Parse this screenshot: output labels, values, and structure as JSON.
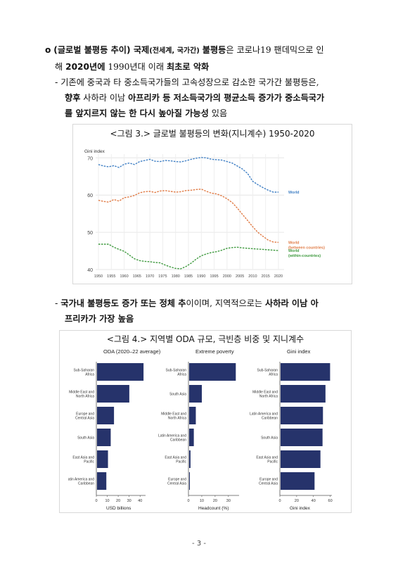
{
  "bullet1": {
    "marker": "o",
    "head_bold": "(글로벌 불평등 추이) 국제",
    "head_small": "(전세계, 국가간)",
    "head_bold2": "불평등",
    "text1": "은 코로나19 팬데믹으로 인",
    "line2_pre": "해 ",
    "year_bold": "2020년에",
    "line2_mid": " 1990년대 이래 ",
    "worst_bold": "최초로 악화"
  },
  "sub1": {
    "dash": "-",
    "line1": "기존에 중국과 타 중소득국가들의 고속성장으로 감소한 국가간 불평등은,",
    "l2_bold1": "향후",
    "l2_text": " 사하라 이남 ",
    "l2_bold2": "아프리카 등 저소득국가의 평균소득 증가가 중소득국가",
    "l3_bold": "를 앞지르지 않는 한 다시 높아질 가능성",
    "l3_text": " 있음"
  },
  "figure3": {
    "title": "<그림 3.> 글로벌 불평등의 변화(지니계수) 1950-2020",
    "chart_data": {
      "type": "line",
      "ylabel": "Gini index",
      "ylim": [
        40,
        71
      ],
      "yticks": [
        40,
        50,
        60,
        70
      ],
      "xticks": [
        1950,
        1955,
        1960,
        1965,
        1970,
        1975,
        1980,
        1985,
        1990,
        1995,
        2000,
        2005,
        2010,
        2015,
        2020
      ],
      "grid": true,
      "series": [
        {
          "name": "World",
          "color": "#3f7fc4",
          "x": [
            1950,
            1952,
            1954,
            1956,
            1958,
            1960,
            1962,
            1964,
            1966,
            1968,
            1970,
            1972,
            1974,
            1976,
            1978,
            1980,
            1982,
            1984,
            1986,
            1988,
            1990,
            1992,
            1994,
            1996,
            1998,
            2000,
            2002,
            2004,
            2006,
            2008,
            2010,
            2012,
            2014,
            2016,
            2018,
            2020
          ],
          "values": [
            68.2,
            67.8,
            67.6,
            67.9,
            67.4,
            68.3,
            68.6,
            68.2,
            69.0,
            69.3,
            69.6,
            69.1,
            69.0,
            69.3,
            69.2,
            69.0,
            68.9,
            69.2,
            69.6,
            69.9,
            70.1,
            70.0,
            69.6,
            69.5,
            69.4,
            69.0,
            68.6,
            67.8,
            67.0,
            65.8,
            63.7,
            62.8,
            62.0,
            61.3,
            60.8,
            60.8
          ]
        },
        {
          "name": "World",
          "name2": "(between countries)",
          "color": "#e07a44",
          "x": [
            1950,
            1952,
            1954,
            1956,
            1958,
            1960,
            1962,
            1964,
            1966,
            1968,
            1970,
            1972,
            1974,
            1976,
            1978,
            1980,
            1982,
            1984,
            1986,
            1988,
            1990,
            1992,
            1994,
            1996,
            1998,
            2000,
            2002,
            2004,
            2006,
            2008,
            2010,
            2012,
            2014,
            2016,
            2018,
            2020
          ],
          "values": [
            58.6,
            58.3,
            58.1,
            58.8,
            58.4,
            59.3,
            59.5,
            59.9,
            60.6,
            60.9,
            61.0,
            60.7,
            61.1,
            61.2,
            61.0,
            60.8,
            60.9,
            61.2,
            61.3,
            61.5,
            61.6,
            61.0,
            60.5,
            60.3,
            59.8,
            59.0,
            58.0,
            56.5,
            54.8,
            53.2,
            51.5,
            50.0,
            48.9,
            47.9,
            47.4,
            47.3
          ]
        },
        {
          "name": "World",
          "name2": "(within-countries)",
          "color": "#3f9a3f",
          "x": [
            1950,
            1952,
            1954,
            1956,
            1958,
            1960,
            1962,
            1964,
            1966,
            1968,
            1970,
            1972,
            1974,
            1976,
            1978,
            1980,
            1982,
            1984,
            1986,
            1988,
            1990,
            1992,
            1994,
            1996,
            1998,
            2000,
            2002,
            2004,
            2006,
            2008,
            2010,
            2012,
            2014,
            2016,
            2018,
            2020
          ],
          "values": [
            46.8,
            46.8,
            46.8,
            46.0,
            45.4,
            44.9,
            43.9,
            42.9,
            42.4,
            42.2,
            42.1,
            41.9,
            41.8,
            41.2,
            40.7,
            40.3,
            40.2,
            40.8,
            41.7,
            42.8,
            43.7,
            44.2,
            44.6,
            44.8,
            45.2,
            45.7,
            45.9,
            46.0,
            45.8,
            45.7,
            45.6,
            45.5,
            45.4,
            45.3,
            45.2,
            45.1
          ]
        }
      ]
    }
  },
  "sub2": {
    "dash": "-",
    "l1_bold": "국가내 불평등도 증가 또는 정체 추",
    "l1_text1": "이이며, 지역적으로는 ",
    "l1_bold2": "사하라 이남 아",
    "l2_bold": "프리카가 가장 높음"
  },
  "figure4": {
    "title": "<그림 4.> 지역별 ODA 규모, 극빈층 비중 및 지니계수",
    "chart_data": [
      {
        "type": "bar",
        "title": "ODA (2020–22 average)",
        "xlabel": "USD billions",
        "xlim": [
          0,
          45
        ],
        "xticks": [
          0,
          10,
          20,
          30,
          40
        ],
        "categories": [
          [
            "Sub-Saharan",
            "Africa"
          ],
          [
            "Middle East and",
            "North Africa"
          ],
          [
            "Europe and",
            "Central Asia"
          ],
          [
            "South Asia"
          ],
          [
            "East Asia and",
            "Pacific"
          ],
          [
            "atin America and",
            "Caribbean"
          ]
        ],
        "values": [
          42.5,
          29.5,
          15.5,
          12.5,
          10.0,
          8.5
        ],
        "color": "#26336b"
      },
      {
        "type": "bar",
        "title": "Extreme poverty",
        "xlabel": "Headcount (%)",
        "xlim": [
          0,
          38
        ],
        "xticks": [
          0,
          10,
          20,
          30
        ],
        "categories": [
          [
            "Sub-Saharan",
            "Africa"
          ],
          [
            "South Asia"
          ],
          [
            "Middle East and",
            "North Africa"
          ],
          [
            "Latin America and",
            "Caribbean"
          ],
          [
            "East Asia and",
            "Pacific"
          ],
          [
            "Europe and",
            "Central Asia"
          ]
        ],
        "values": [
          35.0,
          9.5,
          5.0,
          3.5,
          1.0,
          0.5
        ],
        "color": "#26336b"
      },
      {
        "type": "bar",
        "title": "Gini index",
        "xlabel": "Gini index",
        "xlim": [
          0,
          62
        ],
        "xticks": [
          0,
          20,
          40,
          60
        ],
        "categories": [
          [
            "Sub-Saharan",
            "Africa"
          ],
          [
            "Middle East and",
            "North Africa"
          ],
          [
            "Latin America and",
            "Caribbean"
          ],
          [
            "South Asia"
          ],
          [
            "East Asia and",
            "Pacific"
          ],
          [
            "Europe and",
            "Central Asia"
          ]
        ],
        "values": [
          59.0,
          53.5,
          50.5,
          50.0,
          47.5,
          40.5
        ],
        "color": "#26336b"
      }
    ]
  },
  "footer": {
    "page": "- 3 -"
  }
}
